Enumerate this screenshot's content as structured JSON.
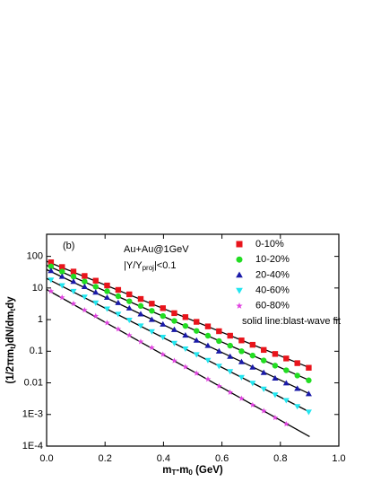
{
  "chart_data": {
    "type": "scatter",
    "log_y": true,
    "label_b": "(b)",
    "annotation_system": "Au+Au@1GeV",
    "annotation_rapidity": [
      "|Y/Y",
      "proj",
      "|<0.1"
    ],
    "annotation_fit": "solid line:blast-wave fit",
    "xlabel": [
      "m",
      "T",
      "-m",
      "0",
      " (GeV)"
    ],
    "ylabel": [
      "(1/2πm",
      "t",
      ")dN/dm",
      "t",
      "dy"
    ],
    "xlim": [
      0,
      1.0
    ],
    "xticks": [
      {
        "value": 0,
        "label": "0.0"
      },
      0.2,
      0.4,
      0.6,
      0.8,
      {
        "value": 1.0,
        "label": "1.0"
      }
    ],
    "ylim": [
      0.0001,
      500
    ],
    "yticks": [
      {
        "value": 0.0001,
        "label": "1E-4"
      },
      {
        "value": 0.001,
        "label": "1E-3"
      },
      0.01,
      0.1,
      1,
      10,
      100
    ],
    "x": [
      0.015,
      0.053,
      0.092,
      0.13,
      0.168,
      0.207,
      0.245,
      0.283,
      0.322,
      0.36,
      0.398,
      0.437,
      0.475,
      0.513,
      0.552,
      0.59,
      0.628,
      0.667,
      0.705,
      0.743,
      0.782,
      0.82,
      0.858,
      0.897
    ],
    "fit_x": [
      0,
      0.9
    ],
    "series": [
      {
        "name": "0-10%",
        "color": "#e8141b",
        "marker": "square",
        "values": [
          65,
          46,
          33,
          24,
          17,
          12,
          8.7,
          6.3,
          4.5,
          3.2,
          2.3,
          1.6,
          1.2,
          0.85,
          0.61,
          0.43,
          0.31,
          0.22,
          0.16,
          0.11,
          0.082,
          0.059,
          0.042,
          0.03
        ],
        "fit": [
          70,
          0.03
        ]
      },
      {
        "name": "10-20%",
        "color": "#22dd22",
        "marker": "circle",
        "values": [
          48,
          33,
          23,
          16,
          11,
          7.9,
          5.5,
          3.8,
          2.7,
          1.9,
          1.3,
          0.91,
          0.63,
          0.44,
          0.31,
          0.21,
          0.15,
          0.1,
          0.073,
          0.051,
          0.035,
          0.025,
          0.017,
          0.012
        ],
        "fit": [
          52,
          0.012
        ]
      },
      {
        "name": "20-40%",
        "color": "#1a1aa8",
        "marker": "triangle-up",
        "values": [
          35,
          23,
          16,
          11,
          7.3,
          5.0,
          3.4,
          2.3,
          1.5,
          1.0,
          0.71,
          0.48,
          0.32,
          0.22,
          0.15,
          0.1,
          0.068,
          0.046,
          0.031,
          0.021,
          0.014,
          0.0098,
          0.0066,
          0.0045
        ],
        "fit": [
          38,
          0.0045
        ]
      },
      {
        "name": "40-60%",
        "color": "#22e6f0",
        "marker": "triangle-down",
        "values": [
          18,
          12,
          7.9,
          5.2,
          3.4,
          2.2,
          1.5,
          0.97,
          0.64,
          0.42,
          0.28,
          0.18,
          0.12,
          0.079,
          0.052,
          0.034,
          0.023,
          0.015,
          0.0098,
          0.0064,
          0.0042,
          0.0028,
          0.0018,
          0.0012
        ],
        "fit": [
          20,
          0.0012
        ]
      },
      {
        "name": "60-80%",
        "color": "#e040e0",
        "marker": "star",
        "values": [
          7.9,
          5.0,
          3.2,
          2.0,
          1.3,
          0.79,
          0.5,
          0.32,
          0.2,
          0.13,
          0.079,
          0.05,
          0.032,
          0.02,
          0.013,
          0.0079,
          0.005,
          0.0032,
          0.002,
          0.0013,
          0.00079,
          0.0005,
          null,
          null
        ],
        "fit": [
          9,
          0.0002
        ]
      }
    ]
  }
}
